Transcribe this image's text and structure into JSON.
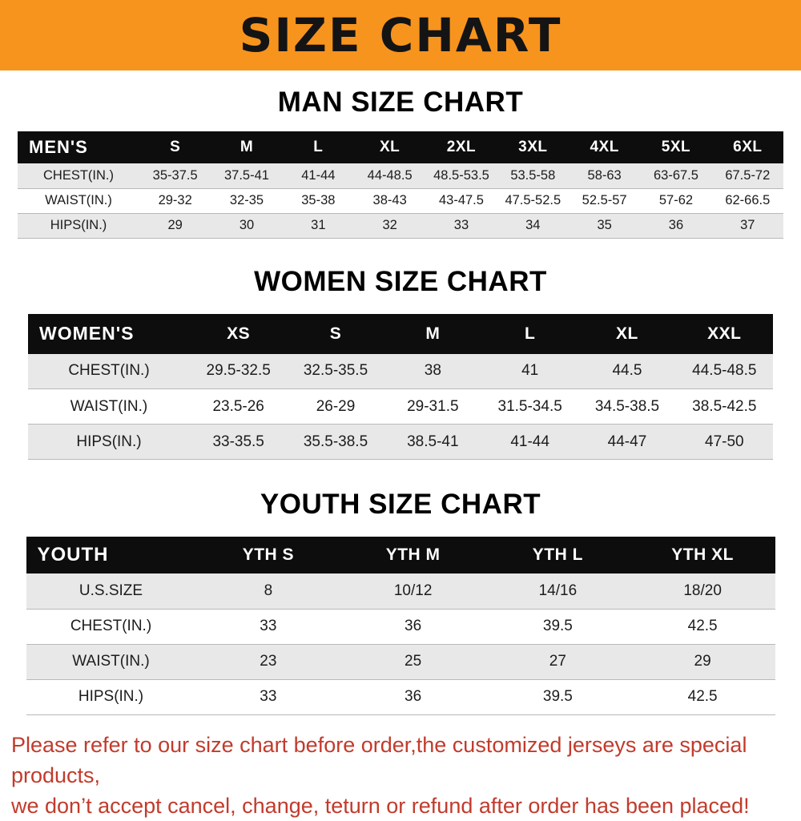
{
  "banner": {
    "title": "SIZE CHART",
    "bg_color": "#f7941e"
  },
  "sections": [
    {
      "heading": "MAN SIZE CHART",
      "table": {
        "header_label": "MEN'S",
        "columns": [
          "S",
          "M",
          "L",
          "XL",
          "2XL",
          "3XL",
          "4XL",
          "5XL",
          "6XL"
        ],
        "rows": [
          {
            "label": "CHEST(IN.)",
            "values": [
              "35-37.5",
              "37.5-41",
              "41-44",
              "44-48.5",
              "48.5-53.5",
              "53.5-58",
              "58-63",
              "63-67.5",
              "67.5-72"
            ]
          },
          {
            "label": "WAIST(IN.)",
            "values": [
              "29-32",
              "32-35",
              "35-38",
              "38-43",
              "43-47.5",
              "47.5-52.5",
              "52.5-57",
              "57-62",
              "62-66.5"
            ]
          },
          {
            "label": "HIPS(IN.)",
            "values": [
              "29",
              "30",
              "31",
              "32",
              "33",
              "34",
              "35",
              "36",
              "37"
            ]
          }
        ]
      }
    },
    {
      "heading": "WOMEN SIZE CHART",
      "table": {
        "header_label": "WOMEN'S",
        "columns": [
          "XS",
          "S",
          "M",
          "L",
          "XL",
          "XXL"
        ],
        "rows": [
          {
            "label": "CHEST(IN.)",
            "values": [
              "29.5-32.5",
              "32.5-35.5",
              "38",
              "41",
              "44.5",
              "44.5-48.5"
            ]
          },
          {
            "label": "WAIST(IN.)",
            "values": [
              "23.5-26",
              "26-29",
              "29-31.5",
              "31.5-34.5",
              "34.5-38.5",
              "38.5-42.5"
            ]
          },
          {
            "label": "HIPS(IN.)",
            "values": [
              "33-35.5",
              "35.5-38.5",
              "38.5-41",
              "41-44",
              "44-47",
              "47-50"
            ]
          }
        ]
      }
    },
    {
      "heading": "YOUTH SIZE CHART",
      "table": {
        "header_label": "YOUTH",
        "columns": [
          "YTH S",
          "YTH M",
          "YTH L",
          "YTH XL"
        ],
        "rows": [
          {
            "label": "U.S.SIZE",
            "values": [
              "8",
              "10/12",
              "14/16",
              "18/20"
            ]
          },
          {
            "label": "CHEST(IN.)",
            "values": [
              "33",
              "36",
              "39.5",
              "42.5"
            ]
          },
          {
            "label": "WAIST(IN.)",
            "values": [
              "23",
              "25",
              "27",
              "29"
            ]
          },
          {
            "label": "HIPS(IN.)",
            "values": [
              "33",
              "36",
              "39.5",
              "42.5"
            ]
          }
        ]
      }
    }
  ],
  "footer": {
    "line1": "Please refer to our size chart before order,the customized jerseys are special products,",
    "line2": "we don’t accept cancel, change, teturn or refund after order has been placed!",
    "text_color": "#c23b2c"
  }
}
